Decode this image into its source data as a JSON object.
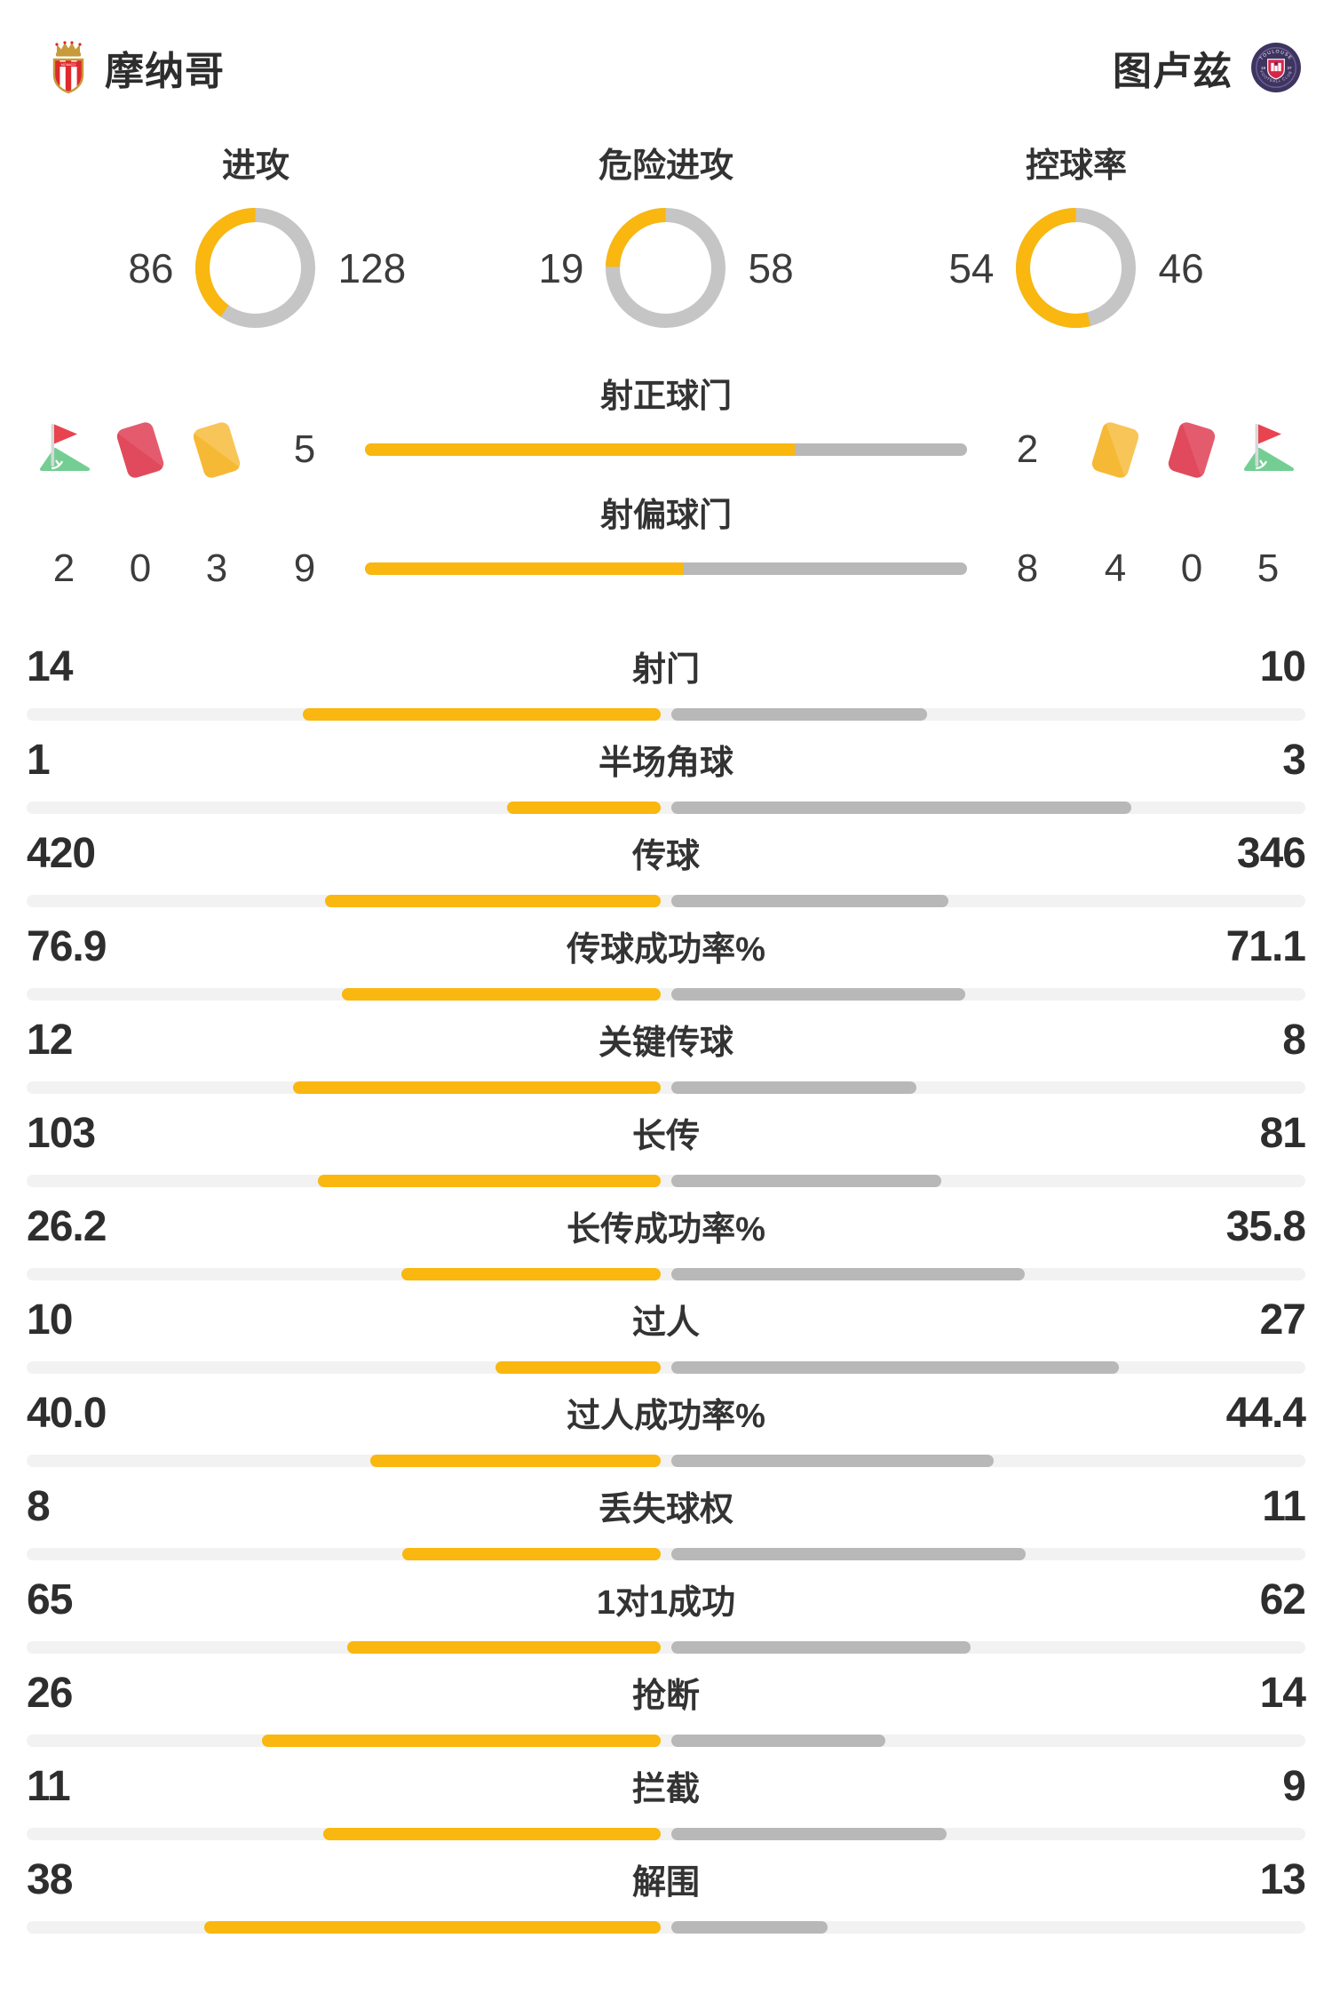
{
  "colors": {
    "accent_yellow": "#F9B70F",
    "bar_gray": "#B8B8B8",
    "track_gray": "#F2F2F2",
    "card_red": "#E24B5E",
    "card_yellow": "#F7BD3D",
    "flag_red": "#E8434F",
    "flag_green": "#74CE93",
    "monaco_red": "#E0282E",
    "monaco_gold": "#C79A3B",
    "toulouse_purple": "#3E3460"
  },
  "header": {
    "home": {
      "name": "摩纳哥"
    },
    "away": {
      "name": "图卢兹"
    }
  },
  "chart_data": {
    "type": "bar",
    "title": "",
    "donuts": [
      {
        "title": "进攻",
        "left": "86",
        "right": "128"
      },
      {
        "title": "危险进攻",
        "left": "19",
        "right": "58"
      },
      {
        "title": "控球率",
        "left": "54",
        "right": "46"
      }
    ],
    "shot_rows": [
      {
        "label": "射正球门",
        "left": "5",
        "right": "2"
      },
      {
        "label": "射偏球门",
        "left": "9",
        "right": "8"
      }
    ],
    "side_stats": {
      "home": {
        "icons": [
          "corner-flag",
          "red-card",
          "yellow-card"
        ],
        "counts": [
          "2",
          "0",
          "3"
        ]
      },
      "away": {
        "icons": [
          "yellow-card",
          "red-card",
          "corner-flag"
        ],
        "counts": [
          "4",
          "0",
          "5"
        ]
      }
    },
    "stats": {
      "rows": [
        {
          "label": "射门",
          "left": "14",
          "right": "10"
        },
        {
          "label": "半场角球",
          "left": "1",
          "right": "3"
        },
        {
          "label": "传球",
          "left": "420",
          "right": "346"
        },
        {
          "label": "传球成功率%",
          "left": "76.9",
          "right": "71.1"
        },
        {
          "label": "关键传球",
          "left": "12",
          "right": "8"
        },
        {
          "label": "长传",
          "left": "103",
          "right": "81"
        },
        {
          "label": "长传成功率%",
          "left": "26.2",
          "right": "35.8"
        },
        {
          "label": "过人",
          "left": "10",
          "right": "27"
        },
        {
          "label": "过人成功率%",
          "left": "40.0",
          "right": "44.4"
        },
        {
          "label": "丢失球权",
          "left": "8",
          "right": "11"
        },
        {
          "label": "1对1成功",
          "left": "65",
          "right": "62"
        },
        {
          "label": "抢断",
          "left": "26",
          "right": "14"
        },
        {
          "label": "拦截",
          "left": "11",
          "right": "9"
        },
        {
          "label": "解围",
          "left": "38",
          "right": "13"
        }
      ]
    }
  }
}
